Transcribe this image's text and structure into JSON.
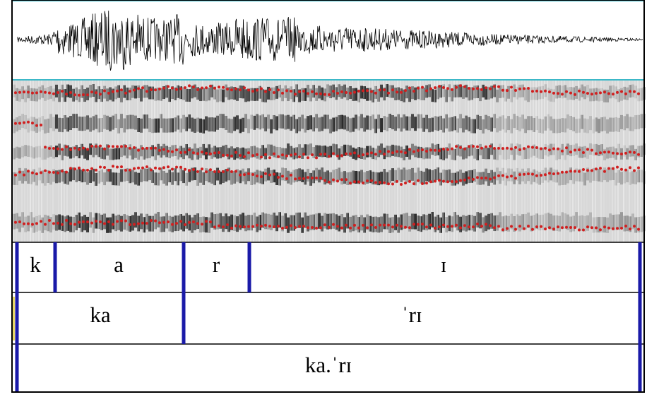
{
  "tiers": [
    {
      "intervals": [
        "k",
        "a",
        "r",
        "ɪ"
      ]
    },
    {
      "intervals": [
        "ka",
        "ˈrɪ"
      ]
    },
    {
      "intervals": [
        "ka.ˈrɪ"
      ]
    }
  ]
}
